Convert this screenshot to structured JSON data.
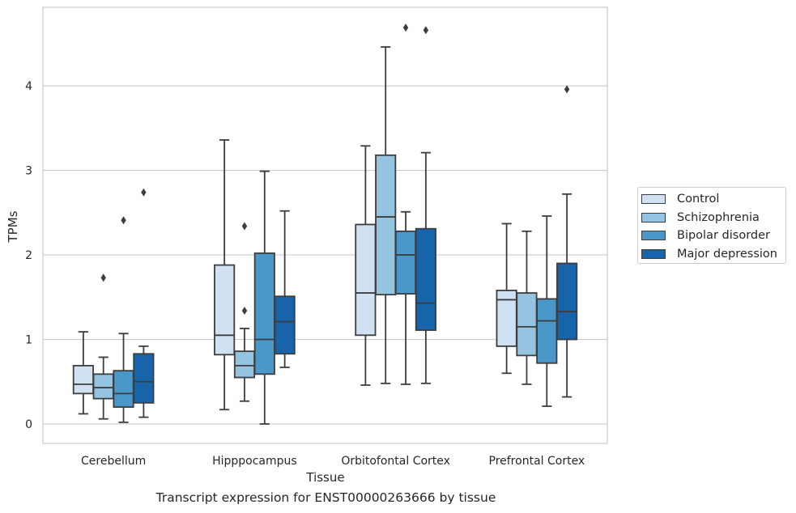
{
  "chart_data": {
    "type": "box",
    "title": "",
    "caption": "Transcript expression for ENST00000263666 by tissue",
    "xlabel": "Tissue",
    "ylabel": "TPMs",
    "ylim": [
      -0.23,
      4.93
    ],
    "yticks": [
      0,
      1,
      2,
      3,
      4
    ],
    "grid": true,
    "legend_position": "right",
    "categories": [
      "Cerebellum",
      "Hipppocampus",
      "Orbitofontal Cortex",
      "Prefrontal Cortex"
    ],
    "series": [
      {
        "name": "Control",
        "color": "#d0e1f2",
        "boxes": [
          {
            "whislo": 0.12,
            "q1": 0.36,
            "med": 0.47,
            "q3": 0.69,
            "whishi": 1.09,
            "fliers": []
          },
          {
            "whislo": 0.17,
            "q1": 0.82,
            "med": 1.05,
            "q3": 1.88,
            "whishi": 3.36,
            "fliers": []
          },
          {
            "whislo": 0.46,
            "q1": 1.05,
            "med": 1.55,
            "q3": 2.36,
            "whishi": 3.29,
            "fliers": []
          },
          {
            "whislo": 0.6,
            "q1": 0.92,
            "med": 1.47,
            "q3": 1.58,
            "whishi": 2.37,
            "fliers": []
          }
        ]
      },
      {
        "name": "Schizophrenia",
        "color": "#94c4df",
        "boxes": [
          {
            "whislo": 0.06,
            "q1": 0.3,
            "med": 0.43,
            "q3": 0.59,
            "whishi": 0.79,
            "fliers": [
              1.73
            ]
          },
          {
            "whislo": 0.27,
            "q1": 0.55,
            "med": 0.69,
            "q3": 0.86,
            "whishi": 1.13,
            "fliers": [
              1.34,
              2.34
            ]
          },
          {
            "whislo": 0.48,
            "q1": 1.53,
            "med": 2.45,
            "q3": 3.18,
            "whishi": 4.46,
            "fliers": []
          },
          {
            "whislo": 0.47,
            "q1": 0.81,
            "med": 1.15,
            "q3": 1.55,
            "whishi": 2.28,
            "fliers": []
          }
        ]
      },
      {
        "name": "Bipolar disorder",
        "color": "#4a98c9",
        "boxes": [
          {
            "whislo": 0.02,
            "q1": 0.2,
            "med": 0.36,
            "q3": 0.63,
            "whishi": 1.07,
            "fliers": [
              2.41
            ]
          },
          {
            "whislo": 0.0,
            "q1": 0.59,
            "med": 1.0,
            "q3": 2.02,
            "whishi": 2.99,
            "fliers": []
          },
          {
            "whislo": 0.47,
            "q1": 1.54,
            "med": 2.0,
            "q3": 2.28,
            "whishi": 2.51,
            "fliers": [
              4.69
            ]
          },
          {
            "whislo": 0.21,
            "q1": 0.72,
            "med": 1.22,
            "q3": 1.48,
            "whishi": 2.46,
            "fliers": []
          }
        ]
      },
      {
        "name": "Major depression",
        "color": "#1764ab",
        "boxes": [
          {
            "whislo": 0.08,
            "q1": 0.25,
            "med": 0.5,
            "q3": 0.83,
            "whishi": 0.92,
            "fliers": [
              2.74
            ]
          },
          {
            "whislo": 0.67,
            "q1": 0.83,
            "med": 1.21,
            "q3": 1.51,
            "whishi": 2.52,
            "fliers": []
          },
          {
            "whislo": 0.48,
            "q1": 1.11,
            "med": 1.43,
            "q3": 2.31,
            "whishi": 3.21,
            "fliers": [
              4.66
            ]
          },
          {
            "whislo": 0.32,
            "q1": 1.0,
            "med": 1.33,
            "q3": 1.9,
            "whishi": 2.72,
            "fliers": [
              3.96
            ]
          }
        ]
      }
    ]
  }
}
